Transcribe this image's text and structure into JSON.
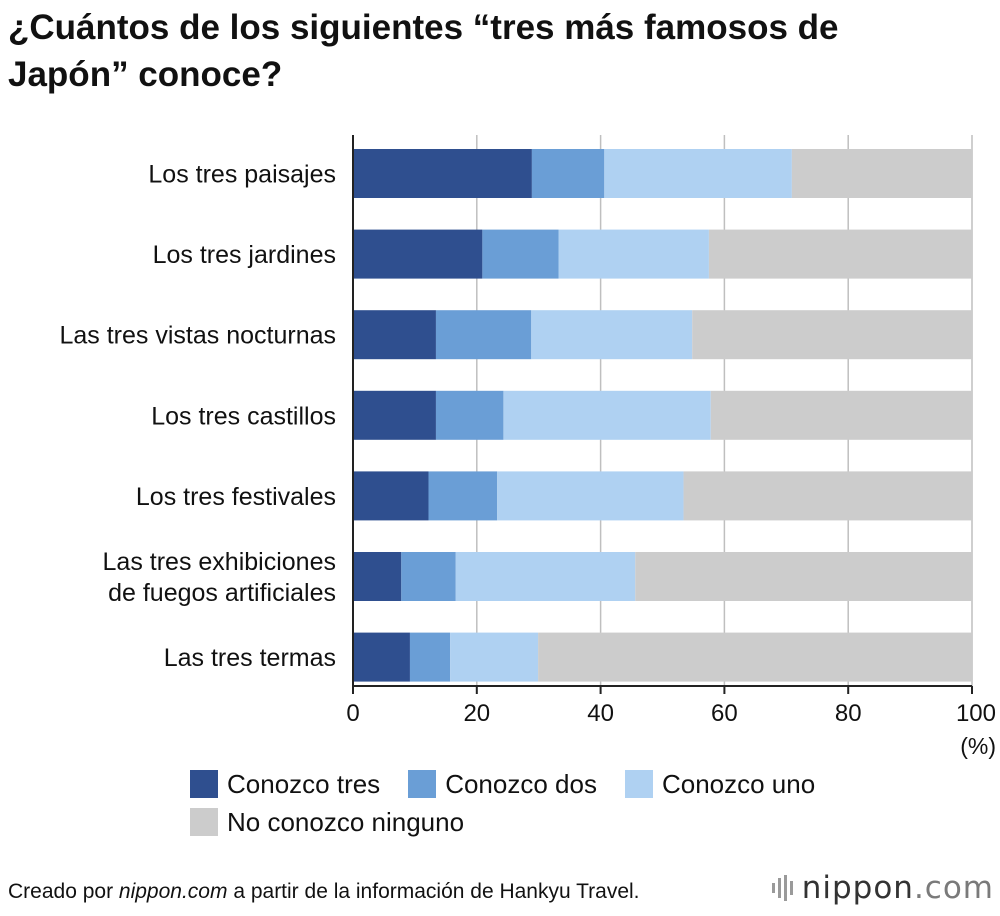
{
  "title": "¿Cuántos de los siguientes “tres más famosos de Japón” conoce?",
  "colors": {
    "series": [
      "#2f4f8f",
      "#6a9ed6",
      "#afd1f2",
      "#cccccc"
    ],
    "grid": "#bfbfbf",
    "axis": "#222222"
  },
  "chart_data": {
    "type": "bar",
    "orientation": "horizontal",
    "stacked": true,
    "title": "¿Cuántos de los siguientes “tres más famosos de Japón” conoce?",
    "xlabel": "",
    "ylabel": "",
    "unit_label": "(%)",
    "xlim": [
      0,
      100
    ],
    "xticks": [
      0,
      20,
      40,
      60,
      80,
      100
    ],
    "grid": true,
    "categories": [
      [
        "Los tres paisajes"
      ],
      [
        "Los tres jardines"
      ],
      [
        "Las tres vistas nocturnas"
      ],
      [
        "Los tres castillos"
      ],
      [
        "Los tres festivales"
      ],
      [
        "Las tres exhibiciones",
        "de fuegos artificiales"
      ],
      [
        "Las tres termas"
      ]
    ],
    "series": [
      {
        "name": "Conozco tres",
        "values": [
          28.9,
          20.9,
          13.4,
          13.4,
          12.2,
          7.8,
          9.2
        ]
      },
      {
        "name": "Conozco dos",
        "values": [
          11.7,
          12.3,
          15.4,
          10.9,
          11.1,
          8.8,
          6.5
        ]
      },
      {
        "name": "Conozco uno",
        "values": [
          30.3,
          24.3,
          26.0,
          33.5,
          30.1,
          29.0,
          14.2
        ]
      },
      {
        "name": "No conozco ninguno",
        "values": [
          29.1,
          42.5,
          45.2,
          42.2,
          46.6,
          54.4,
          70.1
        ]
      }
    ],
    "legend_position": "bottom"
  },
  "footer": {
    "prefix": "Creado por ",
    "site": "nippon.com",
    "suffix": " a partir de la información de Hankyu Travel."
  },
  "brand": {
    "name": "nippon",
    "tld": ".com"
  }
}
